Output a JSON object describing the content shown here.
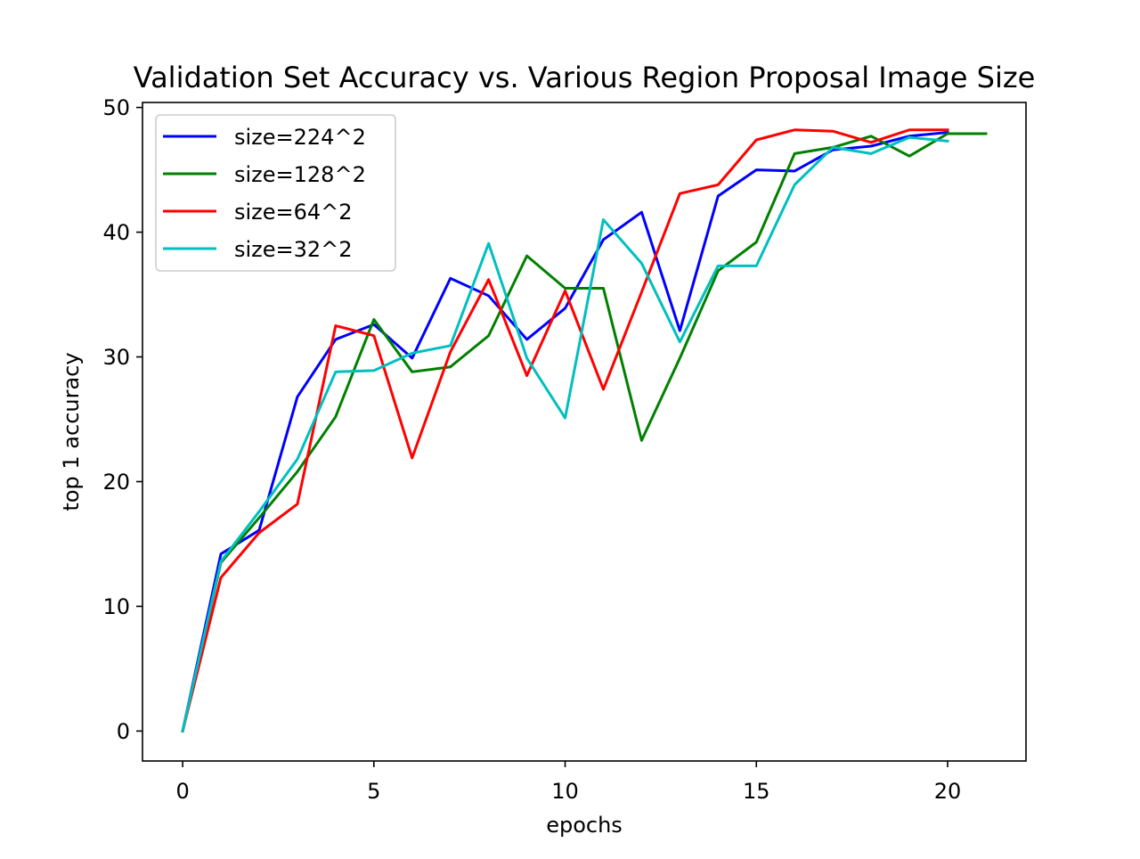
{
  "chart_data": {
    "type": "line",
    "title": "Validation Set Accuracy vs. Various Region Proposal Image Size",
    "xlabel": "epochs",
    "ylabel": "top 1 accuracy",
    "xlim": [
      -1.05,
      22.05
    ],
    "ylim": [
      -2.4,
      50.4
    ],
    "xticks": [
      0,
      5,
      10,
      15,
      20
    ],
    "yticks": [
      0,
      10,
      20,
      30,
      40,
      50
    ],
    "grid": false,
    "legend_position": "upper left",
    "series": [
      {
        "name": "size=224^2",
        "color": "#0000ff",
        "x": [
          0,
          1,
          2,
          3,
          4,
          5,
          6,
          7,
          8,
          9,
          10,
          11,
          12,
          13,
          14,
          15,
          16,
          17,
          18,
          19,
          20
        ],
        "values": [
          0,
          14.2,
          16.1,
          26.8,
          31.4,
          32.6,
          29.9,
          36.3,
          34.9,
          31.4,
          33.9,
          39.4,
          41.6,
          32.1,
          42.9,
          45.0,
          44.9,
          46.6,
          46.9,
          47.7,
          48.0
        ]
      },
      {
        "name": "size=128^2",
        "color": "#008000",
        "x": [
          0,
          1,
          2,
          3,
          4,
          5,
          6,
          7,
          8,
          9,
          10,
          11,
          12,
          13,
          14,
          15,
          16,
          17,
          18,
          19,
          20,
          21
        ],
        "values": [
          0,
          13.5,
          17.1,
          20.8,
          25.2,
          33.0,
          28.8,
          29.2,
          31.7,
          38.1,
          35.5,
          35.5,
          23.3,
          29.9,
          36.9,
          39.2,
          46.3,
          46.8,
          47.7,
          46.1,
          47.9,
          47.9
        ]
      },
      {
        "name": "size=64^2",
        "color": "#ff0000",
        "x": [
          0,
          1,
          2,
          3,
          4,
          5,
          6,
          7,
          8,
          9,
          10,
          11,
          12,
          13,
          14,
          15,
          16,
          17,
          18,
          19,
          20
        ],
        "values": [
          0,
          12.3,
          15.9,
          18.2,
          32.5,
          31.7,
          21.9,
          30.4,
          36.2,
          28.5,
          35.3,
          27.4,
          35.2,
          43.1,
          43.8,
          47.4,
          48.2,
          48.1,
          47.2,
          48.2,
          48.2
        ]
      },
      {
        "name": "size=32^2",
        "color": "#00bfbf",
        "x": [
          0,
          1,
          2,
          3,
          4,
          5,
          6,
          7,
          8,
          9,
          10,
          11,
          12,
          13,
          14,
          15,
          16,
          17,
          18,
          19,
          20
        ],
        "values": [
          0,
          13.6,
          17.6,
          21.8,
          28.8,
          28.9,
          30.3,
          30.9,
          39.1,
          29.9,
          25.1,
          41.0,
          37.5,
          31.2,
          37.3,
          37.3,
          43.8,
          46.8,
          46.3,
          47.6,
          47.3
        ]
      }
    ]
  }
}
